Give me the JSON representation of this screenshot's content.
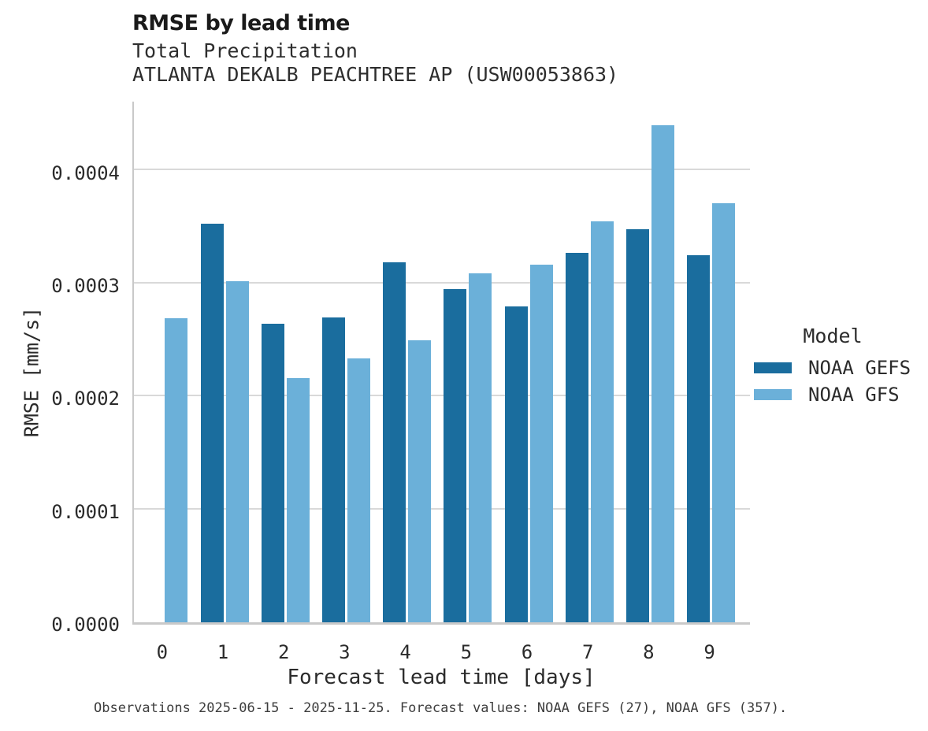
{
  "header": {
    "title": "RMSE by lead time",
    "subtitle": "Total Precipitation",
    "station_line": "ATLANTA DEKALB PEACHTREE AP (USW00053863)"
  },
  "chart_data": {
    "type": "bar",
    "title": "RMSE by lead time",
    "subtitle": "Total Precipitation",
    "station": "ATLANTA DEKALB PEACHTREE AP (USW00053863)",
    "xlabel": "Forecast lead time [days]",
    "ylabel": "RMSE [mm/s]",
    "categories": [
      "0",
      "1",
      "2",
      "3",
      "4",
      "5",
      "6",
      "7",
      "8",
      "9"
    ],
    "series": [
      {
        "name": "NOAA GEFS",
        "color": "#1a6d9e",
        "values": [
          null,
          0.000353,
          0.000264,
          0.00027,
          0.000319,
          0.000295,
          0.00028,
          0.000327,
          0.000348,
          0.000325
        ]
      },
      {
        "name": "NOAA GFS",
        "color": "#6bb0d9",
        "values": [
          0.000269,
          0.000302,
          0.000216,
          0.000234,
          0.00025,
          0.000309,
          0.000317,
          0.000355,
          0.00044,
          0.000371
        ]
      }
    ],
    "ylim": [
      0,
      0.000463
    ],
    "yticks": [
      {
        "value": 0.0,
        "label": "0.0000"
      },
      {
        "value": 0.0001,
        "label": "0.0001"
      },
      {
        "value": 0.0002,
        "label": "0.0002"
      },
      {
        "value": 0.0003,
        "label": "0.0003"
      },
      {
        "value": 0.0004,
        "label": "0.0004"
      }
    ],
    "grid": "horizontal",
    "legend_title": "Model",
    "legend_position": "right"
  },
  "legend": {
    "title": "Model",
    "entries": [
      {
        "label": "NOAA GEFS",
        "color": "#1a6d9e"
      },
      {
        "label": "NOAA GFS",
        "color": "#6bb0d9"
      }
    ]
  },
  "footer": {
    "caption": "Observations 2025-06-15 - 2025-11-25. Forecast values: NOAA GEFS (27), NOAA GFS (357)."
  },
  "colors": {
    "grid": "#d9d9d9",
    "axis": "#c9c9c9",
    "text": "#2b2b2b",
    "title": "#1a1a1a"
  }
}
